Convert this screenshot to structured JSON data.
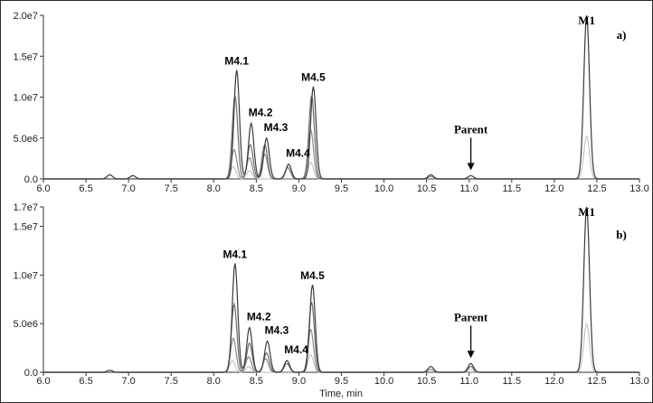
{
  "chart_data": [
    {
      "type": "line",
      "panel_label": "a)",
      "xlabel": "",
      "xlim": [
        6.0,
        13.0
      ],
      "ylim": [
        0,
        20000000
      ],
      "x_ticks": [
        "6.0",
        "6.5",
        "7.0",
        "7.5",
        "8.0",
        "8.5",
        "9.0",
        "9.5",
        "10.0",
        "10.5",
        "11.0",
        "11.5",
        "12.0",
        "12.5",
        "13.0"
      ],
      "y_ticks": [
        "0.0",
        "5.0e6",
        "1.0e7",
        "1.5e7",
        "2.0e7"
      ],
      "series": [
        {
          "color": "#3a3a3a",
          "peaks": [
            [
              6.78,
              500000.0
            ],
            [
              7.05,
              400000.0
            ],
            [
              8.27,
              13300000.0
            ],
            [
              8.44,
              6800000.0
            ],
            [
              8.62,
              5000000.0
            ],
            [
              8.88,
              1800000.0
            ],
            [
              9.17,
              11300000.0
            ],
            [
              10.55,
              500000.0
            ],
            [
              11.02,
              400000.0
            ],
            [
              12.38,
              20000000.0
            ]
          ]
        },
        {
          "color": "#6a6a6a",
          "peaks": [
            [
              8.25,
              10200000.0
            ],
            [
              8.43,
              4200000.0
            ],
            [
              8.6,
              4200000.0
            ],
            [
              8.87,
              1400000.0
            ],
            [
              9.15,
              10200000.0
            ]
          ]
        },
        {
          "color": "#8a8a8a",
          "peaks": [
            [
              8.24,
              3600000.0
            ],
            [
              8.42,
              2600000.0
            ],
            [
              8.6,
              3000000.0
            ],
            [
              9.14,
              6000000.0
            ],
            [
              10.55,
              300000.0
            ]
          ]
        },
        {
          "color": "#c4c4c4",
          "peaks": [
            [
              8.23,
              1500000.0
            ],
            [
              8.42,
              1000000.0
            ],
            [
              9.14,
              2000000.0
            ],
            [
              12.38,
              5200000.0
            ]
          ]
        }
      ],
      "annotations": [
        {
          "text": "M4.1",
          "x": 8.27,
          "y": 13300000.0
        },
        {
          "text": "M4.2",
          "x": 8.44,
          "y": 6800000.0
        },
        {
          "text": "M4.3",
          "x": 8.62,
          "y": 5000000.0
        },
        {
          "text": "M4.4",
          "x": 8.88,
          "y": 1800000.0
        },
        {
          "text": "M4.5",
          "x": 9.17,
          "y": 11300000.0
        },
        {
          "text": "Parent",
          "x": 11.02,
          "y": 400000.0,
          "arrow": true
        },
        {
          "text": "M1",
          "x": 12.38,
          "y": 20000000.0
        }
      ]
    },
    {
      "type": "line",
      "panel_label": "b)",
      "xlabel": "Time, min",
      "xlim": [
        6.0,
        13.0
      ],
      "ylim": [
        0,
        17000000
      ],
      "x_ticks": [
        "6.0",
        "6.5",
        "7.0",
        "7.5",
        "8.0",
        "8.5",
        "9.0",
        "9.5",
        "10.0",
        "10.5",
        "11.0",
        "11.5",
        "12.0",
        "12.5",
        "13.0"
      ],
      "y_ticks": [
        "0.0",
        "5.0e6",
        "1.0e7",
        "1.5e7",
        "1.7e7"
      ],
      "y_tick_values": [
        0,
        5000000,
        10000000,
        15000000,
        17000000
      ],
      "series": [
        {
          "color": "#3a3a3a",
          "peaks": [
            [
              6.78,
              200000.0
            ],
            [
              8.25,
              11200000.0
            ],
            [
              8.42,
              4600000.0
            ],
            [
              8.63,
              3200000.0
            ],
            [
              8.86,
              1200000.0
            ],
            [
              9.16,
              9000000.0
            ],
            [
              10.55,
              600000.0
            ],
            [
              11.02,
              900000.0
            ],
            [
              12.38,
              17000000.0
            ]
          ]
        },
        {
          "color": "#6a6a6a",
          "peaks": [
            [
              8.24,
              7000000.0
            ],
            [
              8.42,
              3000000.0
            ],
            [
              8.62,
              2000000.0
            ],
            [
              8.86,
              900000.0
            ],
            [
              9.15,
              7200000.0
            ],
            [
              11.02,
              600000.0
            ]
          ]
        },
        {
          "color": "#8a8a8a",
          "peaks": [
            [
              8.23,
              3500000.0
            ],
            [
              8.41,
              1600000.0
            ],
            [
              8.61,
              1400000.0
            ],
            [
              9.14,
              4400000.0
            ],
            [
              10.55,
              300000.0
            ]
          ]
        },
        {
          "color": "#c4c4c4",
          "peaks": [
            [
              8.22,
              1200000.0
            ],
            [
              8.41,
              600000.0
            ],
            [
              9.14,
              1800000.0
            ],
            [
              11.02,
              300000.0
            ],
            [
              12.38,
              5000000.0
            ]
          ]
        }
      ],
      "annotations": [
        {
          "text": "M4.1",
          "x": 8.25,
          "y": 11200000.0
        },
        {
          "text": "M4.2",
          "x": 8.42,
          "y": 4600000.0
        },
        {
          "text": "M4.3",
          "x": 8.63,
          "y": 3200000.0
        },
        {
          "text": "M4.4",
          "x": 8.86,
          "y": 1200000.0
        },
        {
          "text": "M4.5",
          "x": 9.16,
          "y": 9000000.0
        },
        {
          "text": "Parent",
          "x": 11.02,
          "y": 900000.0,
          "arrow": true
        },
        {
          "text": "M1",
          "x": 12.38,
          "y": 17000000.0
        }
      ]
    }
  ]
}
